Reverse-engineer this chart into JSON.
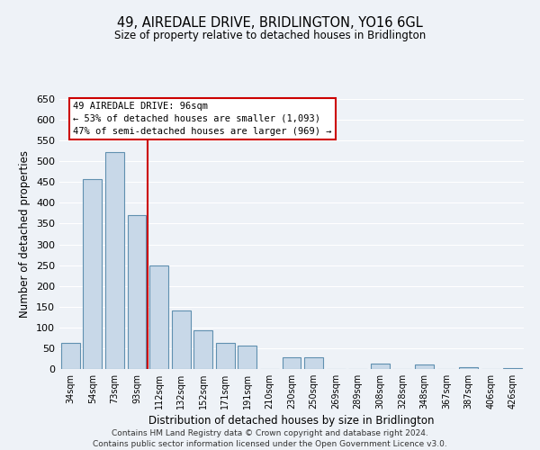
{
  "title": "49, AIREDALE DRIVE, BRIDLINGTON, YO16 6GL",
  "subtitle": "Size of property relative to detached houses in Bridlington",
  "xlabel": "Distribution of detached houses by size in Bridlington",
  "ylabel": "Number of detached properties",
  "footnote1": "Contains HM Land Registry data © Crown copyright and database right 2024.",
  "footnote2": "Contains public sector information licensed under the Open Government Licence v3.0.",
  "bar_labels": [
    "34sqm",
    "54sqm",
    "73sqm",
    "93sqm",
    "112sqm",
    "132sqm",
    "152sqm",
    "171sqm",
    "191sqm",
    "210sqm",
    "230sqm",
    "250sqm",
    "269sqm",
    "289sqm",
    "308sqm",
    "328sqm",
    "348sqm",
    "367sqm",
    "387sqm",
    "406sqm",
    "426sqm"
  ],
  "bar_values": [
    62,
    457,
    522,
    370,
    250,
    141,
    93,
    62,
    57,
    0,
    28,
    28,
    0,
    0,
    12,
    0,
    10,
    0,
    5,
    0,
    3
  ],
  "bar_color": "#c8d8e8",
  "bar_edge_color": "#6090b0",
  "ylim": [
    0,
    650
  ],
  "yticks": [
    0,
    50,
    100,
    150,
    200,
    250,
    300,
    350,
    400,
    450,
    500,
    550,
    600,
    650
  ],
  "vline_x_index": 3,
  "vline_color": "#cc0000",
  "annotation_title": "49 AIREDALE DRIVE: 96sqm",
  "annotation_line1": "← 53% of detached houses are smaller (1,093)",
  "annotation_line2": "47% of semi-detached houses are larger (969) →",
  "bg_color": "#eef2f7"
}
